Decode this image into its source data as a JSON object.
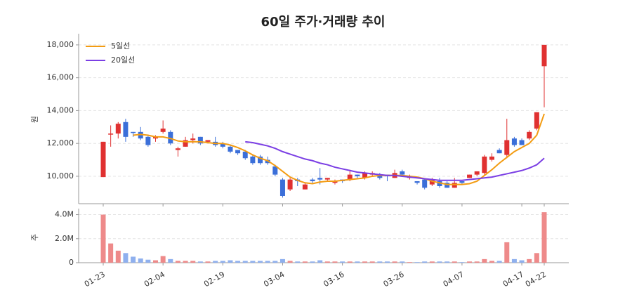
{
  "chart_data": [
    {
      "type": "candlestick",
      "title": "60일 주가·거래량 추이",
      "ylabel": "원",
      "categories": [
        "01-23",
        null,
        null,
        null,
        null,
        null,
        null,
        null,
        "02-04",
        null,
        null,
        null,
        null,
        null,
        null,
        null,
        "02-19",
        null,
        null,
        null,
        null,
        null,
        null,
        null,
        "03-04",
        null,
        null,
        null,
        null,
        null,
        null,
        null,
        "03-16",
        null,
        null,
        null,
        null,
        null,
        null,
        null,
        "03-26",
        null,
        null,
        null,
        null,
        null,
        null,
        null,
        "04-07",
        null,
        null,
        null,
        null,
        null,
        null,
        null,
        "04-17",
        null,
        null,
        "04-22"
      ],
      "open": [
        9950,
        12550,
        12600,
        13300,
        12700,
        12700,
        12400,
        12300,
        12700,
        12700,
        11600,
        11800,
        12200,
        12400,
        12100,
        12100,
        12000,
        11800,
        11600,
        11500,
        11200,
        11200,
        11000,
        10600,
        9800,
        9200,
        9800,
        9200,
        9800,
        9900,
        9800,
        9600,
        9800,
        9800,
        10100,
        9900,
        10100,
        10100,
        10100,
        9900,
        10300,
        9900,
        9700,
        9800,
        9500,
        9700,
        9600,
        9300,
        9700,
        9900,
        10100,
        10200,
        11000,
        11600,
        11300,
        12300,
        12200,
        12300,
        12900,
        16700
      ],
      "high": [
        12100,
        13100,
        13300,
        13500,
        12700,
        13000,
        12500,
        12500,
        13400,
        12800,
        11800,
        12400,
        12600,
        12400,
        12200,
        12400,
        12100,
        11900,
        11600,
        11600,
        11300,
        11300,
        11200,
        10700,
        9900,
        9900,
        9900,
        9600,
        9900,
        10500,
        9900,
        9800,
        9800,
        10400,
        10100,
        10300,
        10300,
        10200,
        10100,
        10400,
        10400,
        10100,
        9700,
        9800,
        9900,
        9900,
        9700,
        9900,
        9700,
        10100,
        10300,
        11300,
        11400,
        11700,
        13500,
        12400,
        12300,
        12800,
        13900,
        18000
      ],
      "low": [
        9950,
        11800,
        12300,
        12100,
        12400,
        12200,
        11800,
        12100,
        12600,
        11900,
        11200,
        11800,
        12000,
        11900,
        12000,
        11800,
        11700,
        11400,
        11300,
        11000,
        10700,
        10700,
        10700,
        10000,
        8700,
        9100,
        9400,
        9200,
        9600,
        9500,
        9700,
        9500,
        9600,
        9700,
        9900,
        9800,
        10000,
        9800,
        9700,
        9900,
        10000,
        9800,
        9500,
        9200,
        9400,
        9300,
        9300,
        9300,
        9500,
        9900,
        10000,
        10100,
        10900,
        11400,
        11100,
        11800,
        11900,
        12200,
        12800,
        14200
      ],
      "close": [
        12100,
        12600,
        13200,
        12400,
        12650,
        12300,
        11900,
        12400,
        12900,
        12000,
        11700,
        12200,
        12300,
        12000,
        12200,
        11900,
        11800,
        11500,
        11400,
        11100,
        10800,
        10800,
        10800,
        10100,
        8800,
        9800,
        9700,
        9500,
        9700,
        9800,
        9900,
        9700,
        9700,
        10100,
        10000,
        10200,
        10200,
        9900,
        10000,
        10200,
        10100,
        10000,
        9600,
        9300,
        9800,
        9400,
        9300,
        9600,
        9600,
        10100,
        10300,
        11200,
        11200,
        11400,
        12200,
        11900,
        11900,
        12700,
        13900,
        18000
      ],
      "series": [
        {
          "name": "5일선",
          "color": "#f39c12",
          "values": [
            null,
            null,
            null,
            null,
            12500,
            12550,
            12500,
            12400,
            12400,
            12300,
            12150,
            12100,
            12100,
            12100,
            12050,
            12000,
            12000,
            11900,
            11750,
            11550,
            11300,
            11100,
            10950,
            10650,
            10300,
            9950,
            9750,
            9600,
            9550,
            9650,
            9700,
            9700,
            9750,
            9800,
            9850,
            9900,
            10000,
            10050,
            10050,
            10050,
            10050,
            10000,
            9950,
            9850,
            9700,
            9600,
            9500,
            9500,
            9500,
            9550,
            9700,
            10050,
            10400,
            10800,
            11150,
            11500,
            11750,
            12000,
            12500,
            13800
          ]
        },
        {
          "name": "20일선",
          "color": "#7b3fe4",
          "values": [
            null,
            null,
            null,
            null,
            null,
            null,
            null,
            null,
            null,
            null,
            null,
            null,
            null,
            null,
            null,
            null,
            null,
            null,
            null,
            12100,
            12050,
            11950,
            11850,
            11700,
            11500,
            11350,
            11200,
            11050,
            10950,
            10800,
            10700,
            10550,
            10450,
            10350,
            10250,
            10200,
            10150,
            10100,
            10050,
            10050,
            10000,
            9950,
            9900,
            9850,
            9800,
            9750,
            9750,
            9750,
            9750,
            9800,
            9850,
            9900,
            9950,
            10050,
            10150,
            10250,
            10350,
            10500,
            10700,
            11100
          ]
        }
      ],
      "up_color": "#e03131",
      "down_color": "#3b6fd9",
      "ylim": [
        8330,
        18680
      ],
      "yticks": [
        {
          "value": 10000,
          "label": "10,000"
        },
        {
          "value": 12000,
          "label": "12,000"
        },
        {
          "value": 14000,
          "label": "14,000"
        },
        {
          "value": 16000,
          "label": "16,000"
        },
        {
          "value": 18000,
          "label": "18,000"
        }
      ],
      "grid": true,
      "legend": "upper left"
    },
    {
      "type": "bar",
      "ylabel": "주",
      "values": [
        4000000,
        1600000,
        1000000,
        800000,
        500000,
        350000,
        250000,
        200000,
        550000,
        300000,
        150000,
        150000,
        150000,
        100000,
        100000,
        150000,
        150000,
        200000,
        150000,
        150000,
        150000,
        150000,
        150000,
        150000,
        300000,
        150000,
        100000,
        100000,
        100000,
        200000,
        100000,
        100000,
        100000,
        100000,
        100000,
        100000,
        100000,
        100000,
        100000,
        100000,
        100000,
        50000,
        50000,
        100000,
        100000,
        100000,
        100000,
        100000,
        50000,
        100000,
        100000,
        300000,
        150000,
        150000,
        1700000,
        300000,
        200000,
        300000,
        800000,
        4200000
      ],
      "up_color": "#ee8a8a",
      "down_color": "#8fb0ee",
      "ylim": [
        0,
        4500000
      ],
      "yticks": [
        0,
        {
          "value": 2000000,
          "label": "2.0M"
        },
        {
          "value": 4000000,
          "label": "4.0M"
        }
      ],
      "grid": true
    }
  ]
}
